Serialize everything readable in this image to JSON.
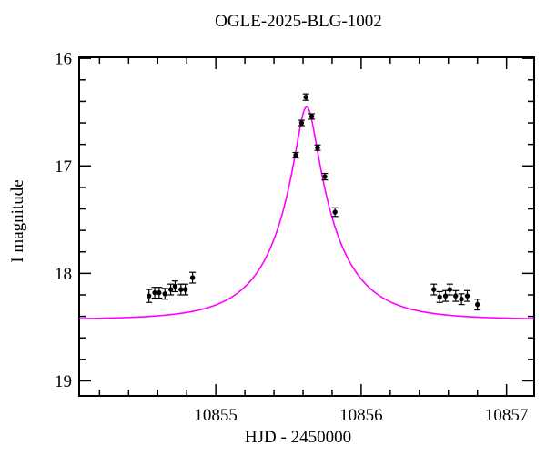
{
  "chart_data": {
    "type": "scatter",
    "title": "OGLE-2025-BLG-1002",
    "xlabel": "HJD - 2450000",
    "ylabel": "I magnitude",
    "xlim": [
      10854.06,
      10857.19
    ],
    "ylim_top": 15.99,
    "ylim_bottom": 19.14,
    "y_axis_inverted": true,
    "grid": false,
    "x_major_ticks": [
      10855,
      10856,
      10857
    ],
    "x_tick_labels": [
      "10855",
      "10856",
      "10857"
    ],
    "y_major_ticks": [
      16,
      17,
      18,
      19
    ],
    "y_tick_labels": [
      "16",
      "17",
      "18",
      "19"
    ],
    "x_minor_step": 0.2,
    "y_minor_step": 0.2,
    "colors": {
      "model_curve": "#ff00ff",
      "data_points": "#000000",
      "axes": "#000000",
      "background": "#ffffff"
    },
    "model": {
      "kind": "paczynski-microlensing",
      "t0": 10855.625,
      "tE": 0.42,
      "u0": 0.163,
      "baseline_mag": 18.43,
      "peak_mag": 16.45
    },
    "points": [
      {
        "x": 10854.54,
        "mag": 18.21,
        "err": 0.06
      },
      {
        "x": 10854.58,
        "mag": 18.18,
        "err": 0.05
      },
      {
        "x": 10854.61,
        "mag": 18.18,
        "err": 0.05
      },
      {
        "x": 10854.65,
        "mag": 18.19,
        "err": 0.05
      },
      {
        "x": 10854.69,
        "mag": 18.15,
        "err": 0.05
      },
      {
        "x": 10854.72,
        "mag": 18.12,
        "err": 0.05
      },
      {
        "x": 10854.76,
        "mag": 18.15,
        "err": 0.05
      },
      {
        "x": 10854.79,
        "mag": 18.15,
        "err": 0.05
      },
      {
        "x": 10854.84,
        "mag": 18.04,
        "err": 0.05
      },
      {
        "x": 10855.55,
        "mag": 16.9,
        "err": 0.025
      },
      {
        "x": 10855.59,
        "mag": 16.6,
        "err": 0.025
      },
      {
        "x": 10855.62,
        "mag": 16.36,
        "err": 0.03
      },
      {
        "x": 10855.66,
        "mag": 16.54,
        "err": 0.025
      },
      {
        "x": 10855.7,
        "mag": 16.83,
        "err": 0.025
      },
      {
        "x": 10855.75,
        "mag": 17.1,
        "err": 0.03
      },
      {
        "x": 10855.82,
        "mag": 17.43,
        "err": 0.04
      },
      {
        "x": 10856.5,
        "mag": 18.15,
        "err": 0.05
      },
      {
        "x": 10856.54,
        "mag": 18.22,
        "err": 0.05
      },
      {
        "x": 10856.58,
        "mag": 18.21,
        "err": 0.05
      },
      {
        "x": 10856.61,
        "mag": 18.15,
        "err": 0.05
      },
      {
        "x": 10856.65,
        "mag": 18.21,
        "err": 0.05
      },
      {
        "x": 10856.69,
        "mag": 18.24,
        "err": 0.05
      },
      {
        "x": 10856.73,
        "mag": 18.21,
        "err": 0.05
      },
      {
        "x": 10856.8,
        "mag": 18.29,
        "err": 0.05
      }
    ]
  }
}
